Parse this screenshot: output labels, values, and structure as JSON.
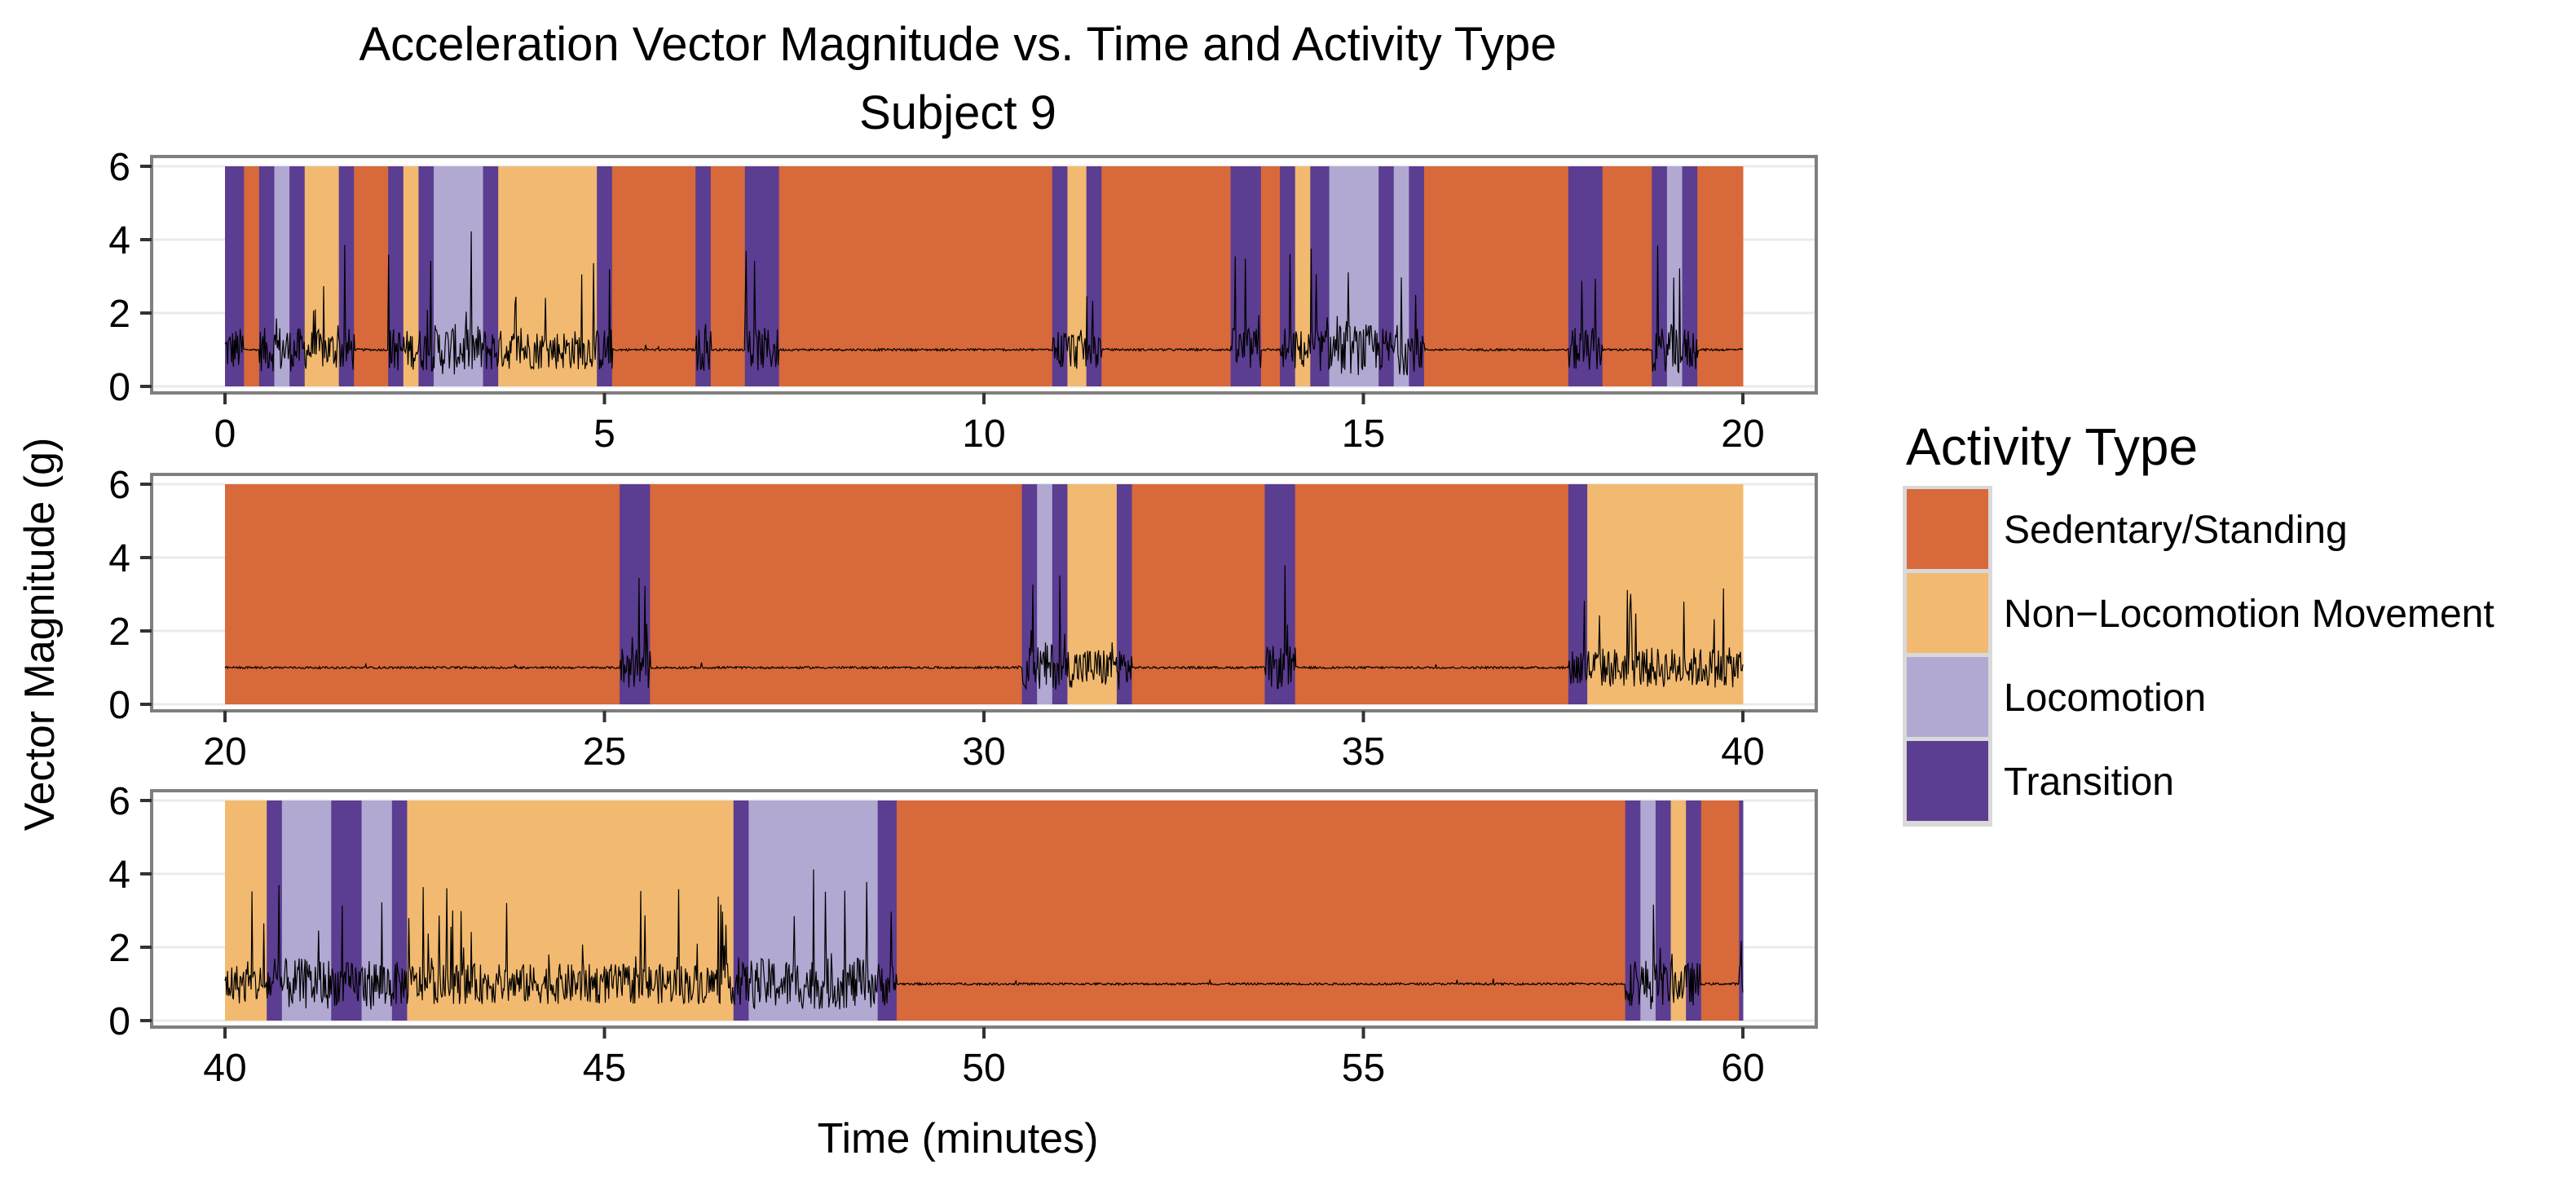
{
  "chart_data": {
    "type": "area",
    "title": "Acceleration Vector Magnitude vs. Time and Activity Type",
    "subtitle": "Subject 9",
    "xlabel": "Time (minutes)",
    "ylabel": "Vector Magnitude (g)",
    "y_ticks": [
      "0",
      "2",
      "4",
      "6"
    ],
    "ylim": [
      0,
      6
    ],
    "legend": {
      "title": "Activity Type",
      "position": "right",
      "items": [
        {
          "key": "sedentary",
          "label": "Sedentary/Standing",
          "color": "#D8693A"
        },
        {
          "key": "nonloco",
          "label": "Non−Locomotion Movement",
          "color": "#F2BA70"
        },
        {
          "key": "loco",
          "label": "Locomotion",
          "color": "#B1A9D2"
        },
        {
          "key": "transition",
          "label": "Transition",
          "color": "#5B3D91"
        }
      ]
    },
    "panels": [
      {
        "xlim": [
          0,
          20
        ],
        "x_ticks": [
          "0",
          "5",
          "10",
          "15",
          "20"
        ],
        "segments": [
          [
            0,
            0.25,
            "transition"
          ],
          [
            0.25,
            0.45,
            "sedentary"
          ],
          [
            0.45,
            0.65,
            "transition"
          ],
          [
            0.65,
            0.85,
            "loco"
          ],
          [
            0.85,
            1.05,
            "transition"
          ],
          [
            1.05,
            1.5,
            "nonloco"
          ],
          [
            1.5,
            1.7,
            "transition"
          ],
          [
            1.7,
            2.15,
            "sedentary"
          ],
          [
            2.15,
            2.35,
            "transition"
          ],
          [
            2.35,
            2.55,
            "nonloco"
          ],
          [
            2.55,
            2.75,
            "transition"
          ],
          [
            2.75,
            3.4,
            "loco"
          ],
          [
            3.4,
            3.6,
            "transition"
          ],
          [
            3.6,
            4.9,
            "nonloco"
          ],
          [
            4.9,
            5.1,
            "transition"
          ],
          [
            5.1,
            6.2,
            "sedentary"
          ],
          [
            6.2,
            6.4,
            "transition"
          ],
          [
            6.4,
            6.85,
            "sedentary"
          ],
          [
            6.85,
            7.3,
            "transition"
          ],
          [
            7.3,
            10.9,
            "sedentary"
          ],
          [
            10.9,
            11.1,
            "transition"
          ],
          [
            11.1,
            11.35,
            "nonloco"
          ],
          [
            11.35,
            11.55,
            "transition"
          ],
          [
            11.55,
            13.25,
            "sedentary"
          ],
          [
            13.25,
            13.65,
            "transition"
          ],
          [
            13.65,
            13.9,
            "sedentary"
          ],
          [
            13.9,
            14.1,
            "transition"
          ],
          [
            14.1,
            14.3,
            "nonloco"
          ],
          [
            14.3,
            14.55,
            "transition"
          ],
          [
            14.55,
            15.2,
            "loco"
          ],
          [
            15.2,
            15.4,
            "transition"
          ],
          [
            15.4,
            15.6,
            "loco"
          ],
          [
            15.6,
            15.8,
            "transition"
          ],
          [
            15.8,
            17.7,
            "sedentary"
          ],
          [
            17.7,
            18.15,
            "transition"
          ],
          [
            18.15,
            18.8,
            "sedentary"
          ],
          [
            18.8,
            19.0,
            "transition"
          ],
          [
            19.0,
            19.2,
            "loco"
          ],
          [
            19.2,
            19.4,
            "transition"
          ],
          [
            19.4,
            20,
            "sedentary"
          ]
        ]
      },
      {
        "xlim": [
          20,
          40
        ],
        "x_ticks": [
          "20",
          "25",
          "30",
          "35",
          "40"
        ],
        "segments": [
          [
            20,
            25.2,
            "sedentary"
          ],
          [
            25.2,
            25.6,
            "transition"
          ],
          [
            25.6,
            30.5,
            "sedentary"
          ],
          [
            30.5,
            30.7,
            "transition"
          ],
          [
            30.7,
            30.9,
            "loco"
          ],
          [
            30.9,
            31.1,
            "transition"
          ],
          [
            31.1,
            31.75,
            "nonloco"
          ],
          [
            31.75,
            31.95,
            "transition"
          ],
          [
            31.95,
            33.7,
            "sedentary"
          ],
          [
            33.7,
            34.1,
            "transition"
          ],
          [
            34.1,
            37.7,
            "sedentary"
          ],
          [
            37.7,
            37.95,
            "transition"
          ],
          [
            37.95,
            40,
            "nonloco"
          ]
        ]
      },
      {
        "xlim": [
          40,
          60
        ],
        "x_ticks": [
          "40",
          "45",
          "50",
          "55",
          "60"
        ],
        "segments": [
          [
            40,
            40.55,
            "nonloco"
          ],
          [
            40.55,
            40.75,
            "transition"
          ],
          [
            40.75,
            41.4,
            "loco"
          ],
          [
            41.4,
            41.8,
            "transition"
          ],
          [
            41.8,
            42.2,
            "loco"
          ],
          [
            42.2,
            42.4,
            "transition"
          ],
          [
            42.4,
            46.7,
            "nonloco"
          ],
          [
            46.7,
            46.9,
            "transition"
          ],
          [
            46.9,
            48.6,
            "loco"
          ],
          [
            48.6,
            48.85,
            "transition"
          ],
          [
            48.85,
            58.45,
            "sedentary"
          ],
          [
            58.45,
            58.65,
            "transition"
          ],
          [
            58.65,
            58.85,
            "loco"
          ],
          [
            58.85,
            59.05,
            "transition"
          ],
          [
            59.05,
            59.25,
            "nonloco"
          ],
          [
            59.25,
            59.45,
            "transition"
          ],
          [
            59.45,
            59.95,
            "sedentary"
          ],
          [
            59.95,
            60,
            "transition"
          ]
        ]
      }
    ]
  }
}
